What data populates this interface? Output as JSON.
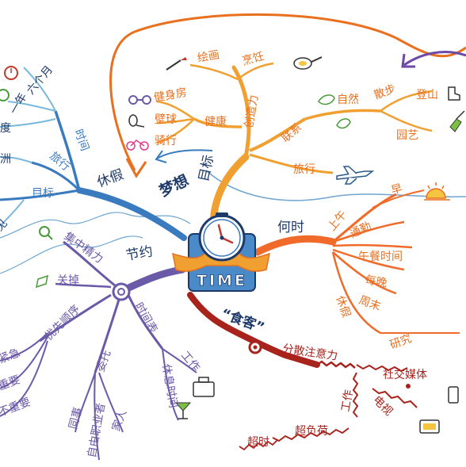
{
  "center": {
    "label": "TIME"
  },
  "colors": {
    "orange": "#f0a030",
    "red_orange": "#f06a2a",
    "dark_red": "#a8231c",
    "purple": "#6b5aa8",
    "blue": "#3a7bc0",
    "light_blue": "#7ab8dc",
    "wave": "#6fa5cf",
    "navy": "#1d3a6b",
    "arrow_orange": "#e8701e",
    "arrow_purple": "#6d4aa8"
  },
  "branches": {
    "dream": {
      "label": "梦想",
      "goal": "目标",
      "create": "创造力",
      "paint": "绘画",
      "cook": "烹饪",
      "health": "健康",
      "gym": "健身房",
      "ball": "壁球",
      "ride": "骑行",
      "connect": "联系",
      "nature": "自然",
      "walk": "散步",
      "climb": "登山",
      "garden": "园艺",
      "travel": "旅行"
    },
    "when": {
      "label": "何时",
      "morning_top": "早",
      "am": "上午",
      "commute": "通勤",
      "lunch": "午餐时间",
      "evening": "每晚",
      "weekend": "周末",
      "holiday": "休假",
      "research": "研究"
    },
    "thief": {
      "label": "“食客”",
      "distract": "分散注意力",
      "social": "社交媒体",
      "tv": "电视",
      "work": "工作",
      "overload": "超负荷",
      "overtime": "超时"
    },
    "save": {
      "label": "节约",
      "focus": "集中精力",
      "off": "关掉",
      "priority": "优先顺序",
      "urgent": "紧急",
      "important": "重要",
      "not_important": "不重要",
      "delegate": "委托",
      "colleague": "同事",
      "freelancer": "自由职业者",
      "family": "家人",
      "schedule": "时间表",
      "work": "工作",
      "rest": "休息时间"
    },
    "vacation": {
      "label": "休假",
      "time": "时间",
      "six_months": "六个月",
      "one_year": "一年",
      "degree": "度",
      "travel": "旅行",
      "continent": "洲",
      "goal": "目标",
      "see": "见"
    }
  }
}
